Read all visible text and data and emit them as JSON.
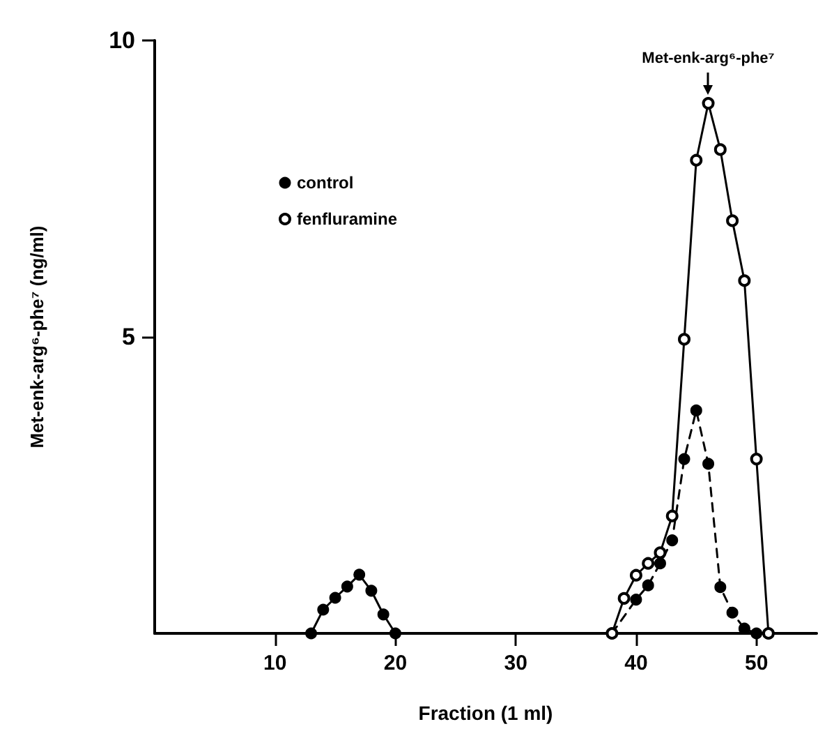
{
  "chart_data": {
    "type": "line",
    "xlabel": "Fraction (1 ml)",
    "ylabel": "Met-enk-arg⁶-phe⁷ (ng/ml)",
    "annotations": [
      {
        "text": "Met-enk-arg⁶-phe⁷",
        "x": 46,
        "y": 8.94
      }
    ],
    "series": [
      {
        "name": "control",
        "color": "#000000",
        "marker": "circle",
        "line_style": "dashed",
        "x": [
          38,
          40,
          41,
          42,
          43,
          44,
          45,
          46,
          47,
          48,
          49,
          50
        ],
        "values": [
          0,
          0.57,
          0.81,
          1.18,
          1.57,
          2.94,
          3.76,
          2.86,
          0.78,
          0.35,
          0.08,
          0
        ]
      },
      {
        "name": "fenfluramine",
        "color": "#000000",
        "marker": "open circle",
        "line_style": "solid",
        "x": [
          38,
          39,
          40,
          41,
          42,
          43,
          44,
          45,
          46,
          47,
          48,
          49,
          50,
          51
        ],
        "values": [
          0,
          0.59,
          0.98,
          1.18,
          1.36,
          1.98,
          4.96,
          7.98,
          8.94,
          8.16,
          6.96,
          5.95,
          2.94,
          0
        ]
      },
      {
        "color": "#000000",
        "marker": "circle",
        "line_style": "solid",
        "x": [
          13,
          14,
          15,
          16,
          17,
          18,
          19,
          20
        ],
        "values": [
          0,
          0.4,
          0.6,
          0.79,
          0.99,
          0.72,
          0.32,
          0
        ]
      }
    ],
    "xlim": [
      0,
      55
    ],
    "xticks": [
      10,
      20,
      30,
      40,
      50
    ],
    "ylim": [
      0,
      10
    ],
    "yticks": [
      5,
      10
    ],
    "grid": false,
    "legend": "top left"
  }
}
